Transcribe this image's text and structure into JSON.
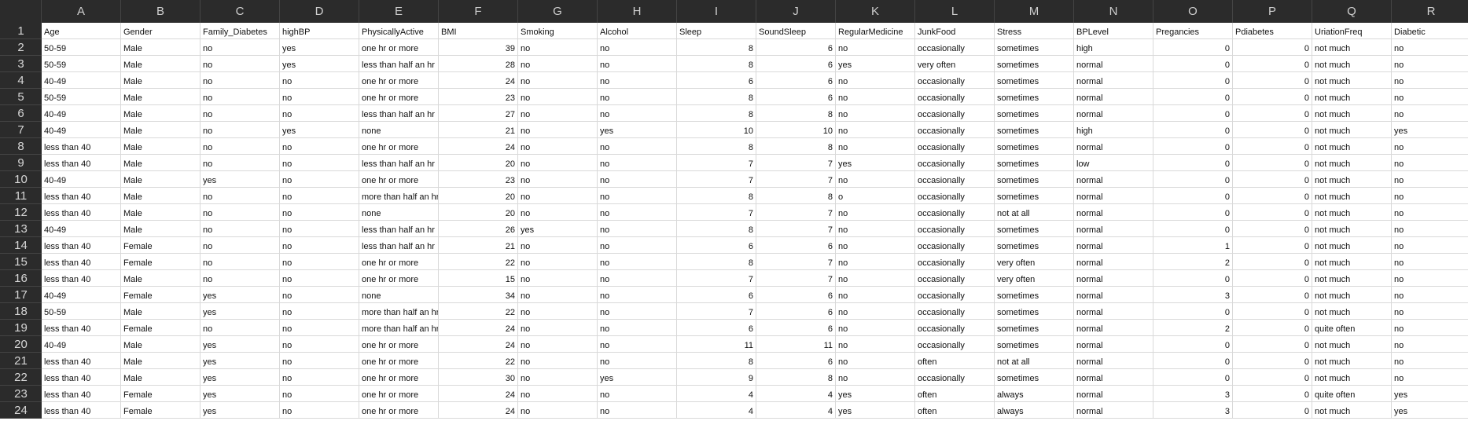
{
  "columns": [
    "A",
    "B",
    "C",
    "D",
    "E",
    "F",
    "G",
    "H",
    "I",
    "J",
    "K",
    "L",
    "M",
    "N",
    "O",
    "P",
    "Q",
    "R"
  ],
  "numeric_columns": [
    5,
    8,
    9,
    14,
    15
  ],
  "rows": [
    [
      "Age",
      "Gender",
      "Family_Diabetes",
      "highBP",
      "PhysicallyActive",
      "BMI",
      "Smoking",
      "Alcohol",
      "Sleep",
      "SoundSleep",
      "RegularMedicine",
      "JunkFood",
      "Stress",
      "BPLevel",
      "Pregancies",
      "Pdiabetes",
      "UriationFreq",
      "Diabetic"
    ],
    [
      "50-59",
      "Male",
      "no",
      "yes",
      "one hr or more",
      "39",
      "no",
      "no",
      "8",
      "6",
      "no",
      "occasionally",
      "sometimes",
      "high",
      "0",
      "0",
      "not much",
      "no"
    ],
    [
      "50-59",
      "Male",
      "no",
      "yes",
      "less than half an hr",
      "28",
      "no",
      "no",
      "8",
      "6",
      "yes",
      "very often",
      "sometimes",
      "normal",
      "0",
      "0",
      "not much",
      "no"
    ],
    [
      "40-49",
      "Male",
      "no",
      "no",
      "one hr or more",
      "24",
      "no",
      "no",
      "6",
      "6",
      "no",
      "occasionally",
      "sometimes",
      "normal",
      "0",
      "0",
      "not much",
      "no"
    ],
    [
      "50-59",
      "Male",
      "no",
      "no",
      "one hr or more",
      "23",
      "no",
      "no",
      "8",
      "6",
      "no",
      "occasionally",
      "sometimes",
      "normal",
      "0",
      "0",
      "not much",
      "no"
    ],
    [
      "40-49",
      "Male",
      "no",
      "no",
      "less than half an hr",
      "27",
      "no",
      "no",
      "8",
      "8",
      "no",
      "occasionally",
      "sometimes",
      "normal",
      "0",
      "0",
      "not much",
      "no"
    ],
    [
      "40-49",
      "Male",
      "no",
      "yes",
      "none",
      "21",
      "no",
      "yes",
      "10",
      "10",
      "no",
      "occasionally",
      "sometimes",
      "high",
      "0",
      "0",
      "not much",
      "yes"
    ],
    [
      "less than 40",
      "Male",
      "no",
      "no",
      "one hr or more",
      "24",
      "no",
      "no",
      "8",
      "8",
      "no",
      "occasionally",
      "sometimes",
      "normal",
      "0",
      "0",
      "not much",
      "no"
    ],
    [
      "less than 40",
      "Male",
      "no",
      "no",
      "less than half an hr",
      "20",
      "no",
      "no",
      "7",
      "7",
      "yes",
      "occasionally",
      "sometimes",
      "low",
      "0",
      "0",
      "not much",
      "no"
    ],
    [
      "40-49",
      "Male",
      "yes",
      "no",
      "one hr or more",
      "23",
      "no",
      "no",
      "7",
      "7",
      "no",
      "occasionally",
      "sometimes",
      "normal",
      "0",
      "0",
      "not much",
      "no"
    ],
    [
      "less than 40",
      "Male",
      "no",
      "no",
      "more than half an hr",
      "20",
      "no",
      "no",
      "8",
      "8",
      "o",
      "occasionally",
      "sometimes",
      "normal",
      "0",
      "0",
      "not much",
      "no"
    ],
    [
      "less than 40",
      "Male",
      "no",
      "no",
      "none",
      "20",
      "no",
      "no",
      "7",
      "7",
      "no",
      "occasionally",
      "not at all",
      "normal",
      "0",
      "0",
      "not much",
      "no"
    ],
    [
      "40-49",
      "Male",
      "no",
      "no",
      "less than half an hr",
      "26",
      "yes",
      "no",
      "8",
      "7",
      "no",
      "occasionally",
      "sometimes",
      "normal",
      "0",
      "0",
      "not much",
      "no"
    ],
    [
      "less than 40",
      "Female",
      "no",
      "no",
      "less than half an hr",
      "21",
      "no",
      "no",
      "6",
      "6",
      "no",
      "occasionally",
      "sometimes",
      "normal",
      "1",
      "0",
      "not much",
      "no"
    ],
    [
      "less than 40",
      "Female",
      "no",
      "no",
      "one hr or more",
      "22",
      "no",
      "no",
      "8",
      "7",
      "no",
      "occasionally",
      "very often",
      "normal",
      "2",
      "0",
      "not much",
      "no"
    ],
    [
      "less than 40",
      "Male",
      "no",
      "no",
      "one hr or more",
      "15",
      "no",
      "no",
      "7",
      "7",
      "no",
      "occasionally",
      "very often",
      "normal",
      "0",
      "0",
      "not much",
      "no"
    ],
    [
      "40-49",
      "Female",
      "yes",
      "no",
      "none",
      "34",
      "no",
      "no",
      "6",
      "6",
      "no",
      "occasionally",
      "sometimes",
      "normal",
      "3",
      "0",
      "not much",
      "no"
    ],
    [
      "50-59",
      "Male",
      "yes",
      "no",
      "more than half an hr",
      "22",
      "no",
      "no",
      "7",
      "6",
      "no",
      "occasionally",
      "sometimes",
      "normal",
      "0",
      "0",
      "not much",
      "no"
    ],
    [
      "less than 40",
      "Female",
      "no",
      "no",
      "more than half an hr",
      "24",
      "no",
      "no",
      "6",
      "6",
      "no",
      "occasionally",
      "sometimes",
      "normal",
      "2",
      "0",
      "quite often",
      "no"
    ],
    [
      "40-49",
      "Male",
      "yes",
      "no",
      "one hr or more",
      "24",
      "no",
      "no",
      "11",
      "11",
      "no",
      "occasionally",
      "sometimes",
      "normal",
      "0",
      "0",
      "not much",
      "no"
    ],
    [
      "less than 40",
      "Male",
      "yes",
      "no",
      "one hr or more",
      "22",
      "no",
      "no",
      "8",
      "6",
      "no",
      "often",
      "not at all",
      "normal",
      "0",
      "0",
      "not much",
      "no"
    ],
    [
      "less than 40",
      "Male",
      "yes",
      "no",
      "one hr or more",
      "30",
      "no",
      "yes",
      "9",
      "8",
      "no",
      "occasionally",
      "sometimes",
      "normal",
      "0",
      "0",
      "not much",
      "no"
    ],
    [
      "less than 40",
      "Female",
      "yes",
      "no",
      "one hr or more",
      "24",
      "no",
      "no",
      "4",
      "4",
      "yes",
      "often",
      "always",
      "normal",
      "3",
      "0",
      "quite often",
      "yes"
    ],
    [
      "less than 40",
      "Female",
      "yes",
      "no",
      "one hr or more",
      "24",
      "no",
      "no",
      "4",
      "4",
      "yes",
      "often",
      "always",
      "normal",
      "3",
      "0",
      "not much",
      "yes"
    ]
  ],
  "colors": {
    "header_bg": "#2b2b2b",
    "header_text": "#cfcfcf",
    "grid": "#d9d9d9",
    "cell_bg": "#ffffff"
  }
}
